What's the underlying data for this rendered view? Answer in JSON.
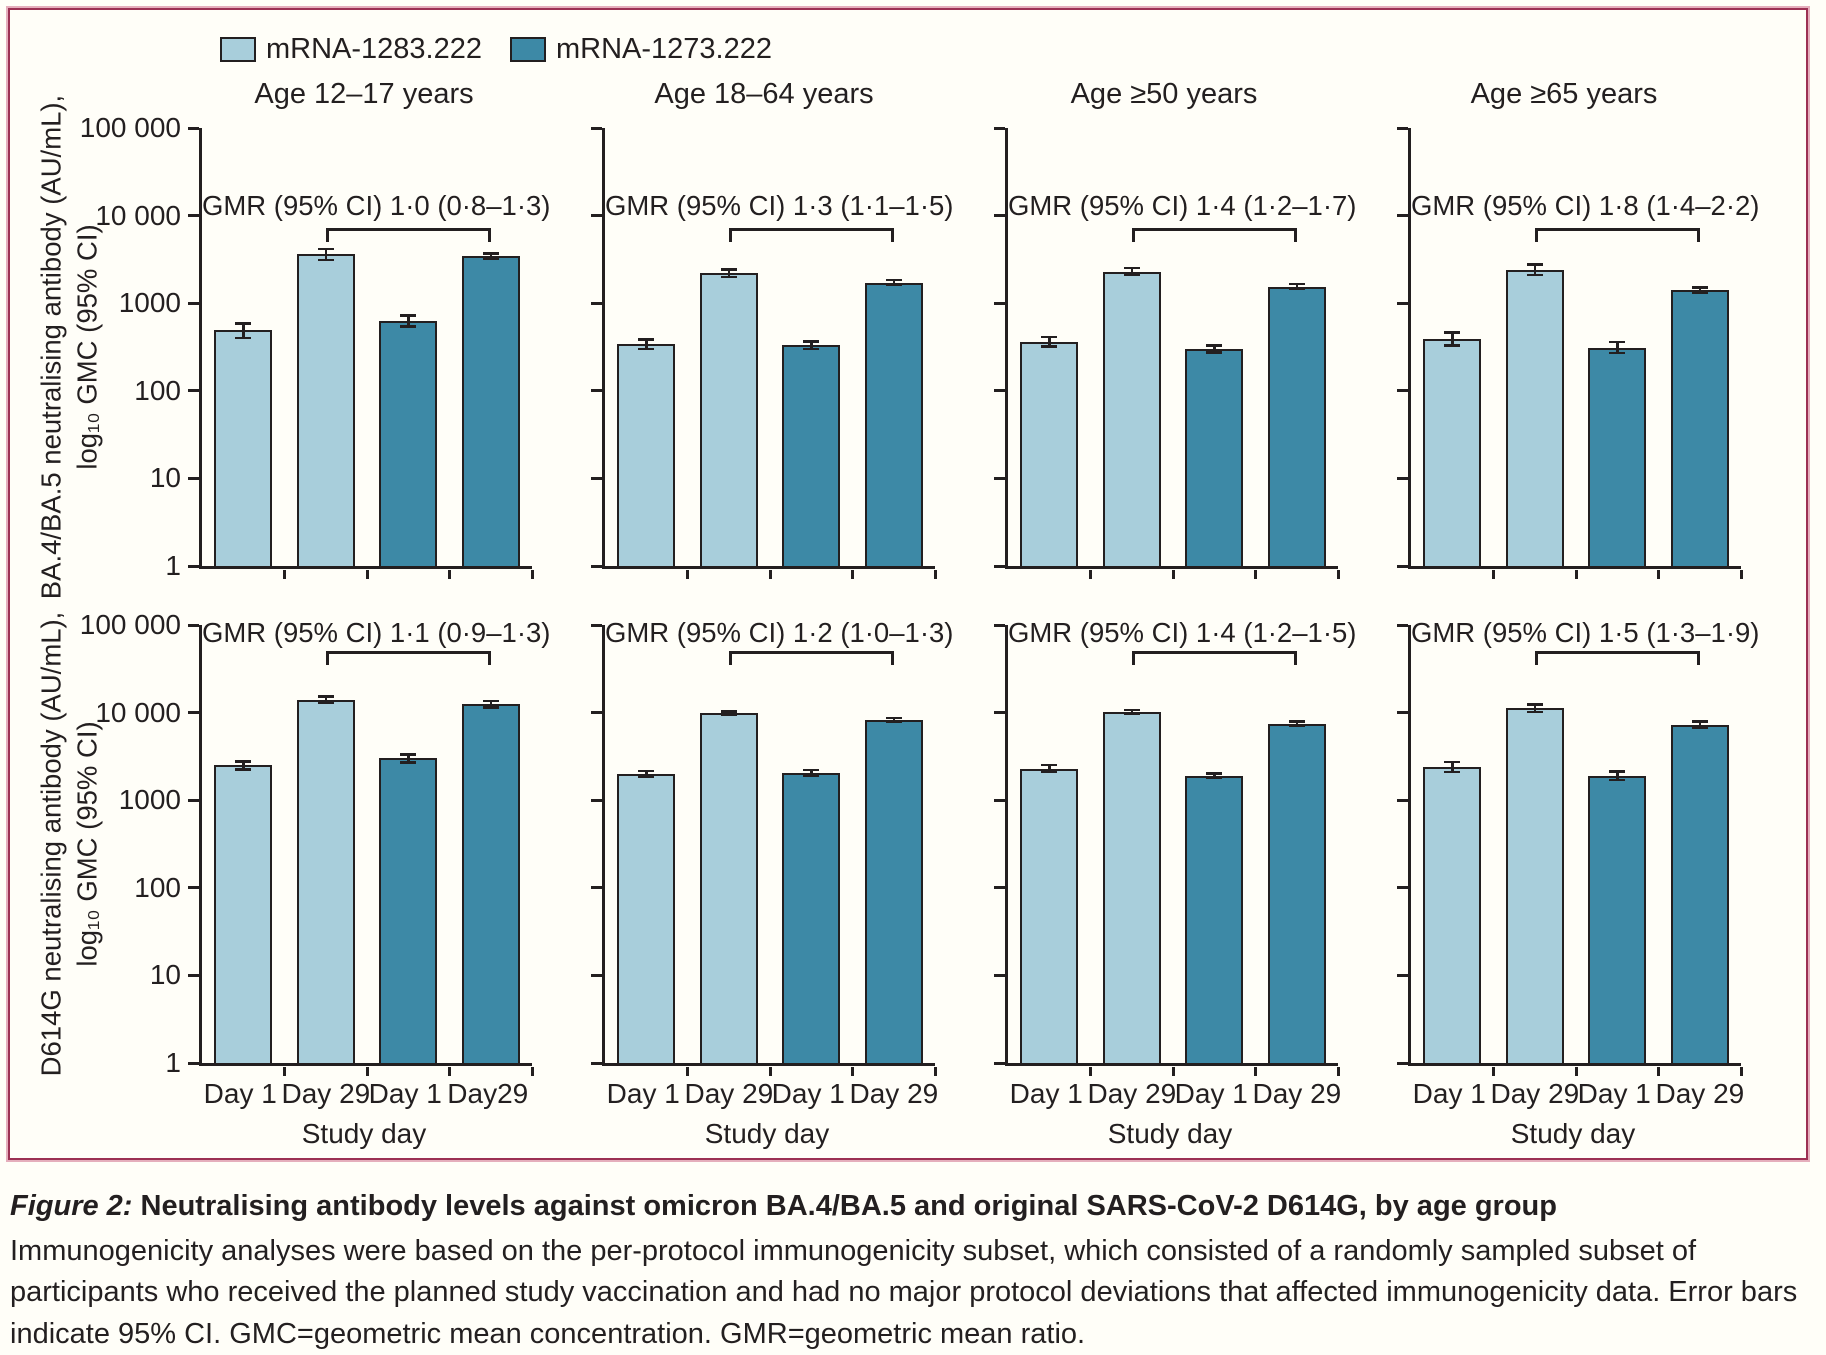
{
  "chart_data": {
    "type": "bar",
    "yscale": "log",
    "ylim": [
      1,
      100000
    ],
    "yticks": [
      100000,
      10000,
      1000,
      100,
      10,
      1
    ],
    "ytick_labels": [
      "100 000",
      "10 000",
      "1000",
      "100",
      "10",
      "1"
    ],
    "xlabel": "Study day",
    "legend_position": "top-left",
    "grid": false,
    "series": [
      {
        "name": "mRNA-1283.222",
        "color": "#a8cedb"
      },
      {
        "name": "mRNA-1273.222",
        "color": "#3d89a6"
      }
    ],
    "columns": [
      "Age 12–17 years",
      "Age 18–64 years",
      "Age ≥50 years",
      "Age ≥65 years"
    ],
    "rows": [
      {
        "ylabel_line1": "BA.4/BA.5 neutralising antibody (AU/mL),",
        "ylabel_line2": "log₁₀ GMC (95% CI)",
        "panels": [
          {
            "age_group": "Age 12–17 years",
            "gmr_label": "GMR (95% CI) 1·0 (0·8–1·3)",
            "bars": [
              {
                "series": 0,
                "day": "Day 1",
                "value": 490,
                "ci_low": 400,
                "ci_high": 590
              },
              {
                "series": 0,
                "day": "Day 29",
                "value": 3600,
                "ci_low": 3100,
                "ci_high": 4150
              },
              {
                "series": 1,
                "day": "Day 1",
                "value": 620,
                "ci_low": 540,
                "ci_high": 720
              },
              {
                "series": 1,
                "day": "Day 29",
                "value": 3450,
                "ci_low": 3250,
                "ci_high": 3700
              }
            ]
          },
          {
            "age_group": "Age 18–64 years",
            "gmr_label": "GMR (95% CI) 1·3 (1·1–1·5)",
            "bars": [
              {
                "series": 0,
                "day": "Day 1",
                "value": 340,
                "ci_low": 300,
                "ci_high": 385
              },
              {
                "series": 0,
                "day": "Day 29",
                "value": 2200,
                "ci_low": 2000,
                "ci_high": 2420
              },
              {
                "series": 1,
                "day": "Day 1",
                "value": 330,
                "ci_low": 300,
                "ci_high": 365
              },
              {
                "series": 1,
                "day": "Day 29",
                "value": 1720,
                "ci_low": 1620,
                "ci_high": 1830
              }
            ]
          },
          {
            "age_group": "Age ≥50 years",
            "gmr_label": "GMR (95% CI) 1·4 (1·2–1·7)",
            "bars": [
              {
                "series": 0,
                "day": "Day 1",
                "value": 360,
                "ci_low": 320,
                "ci_high": 410
              },
              {
                "series": 0,
                "day": "Day 29",
                "value": 2300,
                "ci_low": 2100,
                "ci_high": 2520
              },
              {
                "series": 1,
                "day": "Day 1",
                "value": 300,
                "ci_low": 275,
                "ci_high": 330
              },
              {
                "series": 1,
                "day": "Day 29",
                "value": 1550,
                "ci_low": 1460,
                "ci_high": 1650
              }
            ]
          },
          {
            "age_group": "Age ≥65 years",
            "gmr_label": "GMR (95% CI) 1·8 (1·4–2·2)",
            "bars": [
              {
                "series": 0,
                "day": "Day 1",
                "value": 390,
                "ci_low": 330,
                "ci_high": 465
              },
              {
                "series": 0,
                "day": "Day 29",
                "value": 2400,
                "ci_low": 2100,
                "ci_high": 2760
              },
              {
                "series": 1,
                "day": "Day 1",
                "value": 310,
                "ci_low": 270,
                "ci_high": 360
              },
              {
                "series": 1,
                "day": "Day 29",
                "value": 1400,
                "ci_low": 1300,
                "ci_high": 1520
              }
            ]
          }
        ]
      },
      {
        "ylabel_line1": "D614G neutralising antibody (AU/mL),",
        "ylabel_line2": "log₁₀ GMC (95% CI)",
        "panels": [
          {
            "age_group": "Age 12–17 years",
            "gmr_label": "GMR (95% CI) 1·1 (0·9–1·3)",
            "day_labels": [
              "Day 1",
              "Day 29",
              "Day 1",
              "Day29"
            ],
            "bars": [
              {
                "series": 0,
                "day": "Day 1",
                "value": 2500,
                "ci_low": 2250,
                "ci_high": 2780
              },
              {
                "series": 0,
                "day": "Day 29",
                "value": 14000,
                "ci_low": 12800,
                "ci_high": 15300
              },
              {
                "series": 1,
                "day": "Day 1",
                "value": 3000,
                "ci_low": 2700,
                "ci_high": 3340
              },
              {
                "series": 1,
                "day": "Day 29",
                "value": 12500,
                "ci_low": 11500,
                "ci_high": 13600
              }
            ]
          },
          {
            "age_group": "Age 18–64 years",
            "gmr_label": "GMR (95% CI) 1·2 (1·0–1·3)",
            "day_labels": [
              "Day 1",
              "Day 29",
              "Day 1",
              "Day 29"
            ],
            "bars": [
              {
                "series": 0,
                "day": "Day 1",
                "value": 2000,
                "ci_low": 1850,
                "ci_high": 2160
              },
              {
                "series": 0,
                "day": "Day 29",
                "value": 9800,
                "ci_low": 9350,
                "ci_high": 10280
              },
              {
                "series": 1,
                "day": "Day 1",
                "value": 2050,
                "ci_low": 1900,
                "ci_high": 2210
              },
              {
                "series": 1,
                "day": "Day 29",
                "value": 8300,
                "ci_low": 7900,
                "ci_high": 8720
              }
            ]
          },
          {
            "age_group": "Age ≥50 years",
            "gmr_label": "GMR (95% CI) 1·4 (1·2–1·5)",
            "day_labels": [
              "Day 1",
              "Day 29",
              "Day 1",
              "Day 29"
            ],
            "bars": [
              {
                "series": 0,
                "day": "Day 1",
                "value": 2300,
                "ci_low": 2100,
                "ci_high": 2520
              },
              {
                "series": 0,
                "day": "Day 29",
                "value": 10200,
                "ci_low": 9700,
                "ci_high": 10730
              },
              {
                "series": 1,
                "day": "Day 1",
                "value": 1900,
                "ci_low": 1790,
                "ci_high": 2020
              },
              {
                "series": 1,
                "day": "Day 29",
                "value": 7500,
                "ci_low": 7130,
                "ci_high": 7890
              }
            ]
          },
          {
            "age_group": "Age ≥65 years",
            "gmr_label": "GMR (95% CI) 1·5 (1·3–1·9)",
            "day_labels": [
              "Day 1",
              "Day 29",
              "Day 1",
              "Day 29"
            ],
            "bars": [
              {
                "series": 0,
                "day": "Day 1",
                "value": 2400,
                "ci_low": 2100,
                "ci_high": 2740
              },
              {
                "series": 0,
                "day": "Day 29",
                "value": 11200,
                "ci_low": 10200,
                "ci_high": 12300
              },
              {
                "series": 1,
                "day": "Day 1",
                "value": 1900,
                "ci_low": 1700,
                "ci_high": 2120
              },
              {
                "series": 1,
                "day": "Day 29",
                "value": 7300,
                "ci_low": 6700,
                "ci_high": 7950
              }
            ]
          }
        ]
      }
    ]
  },
  "caption": {
    "label": "Figure 2:",
    "title": " Neutralising antibody levels against omicron BA.4/BA.5 and original SARS-CoV-2 D614G, by age group",
    "body": "Immunogenicity analyses were based on the per-protocol immunogenicity subset, which consisted of a randomly sampled subset of participants who received the planned study vaccination and had no major protocol deviations that affected immunogenicity data. Error bars indicate 95% CI. GMC=geometric mean concentration. GMR=geometric mean ratio."
  }
}
